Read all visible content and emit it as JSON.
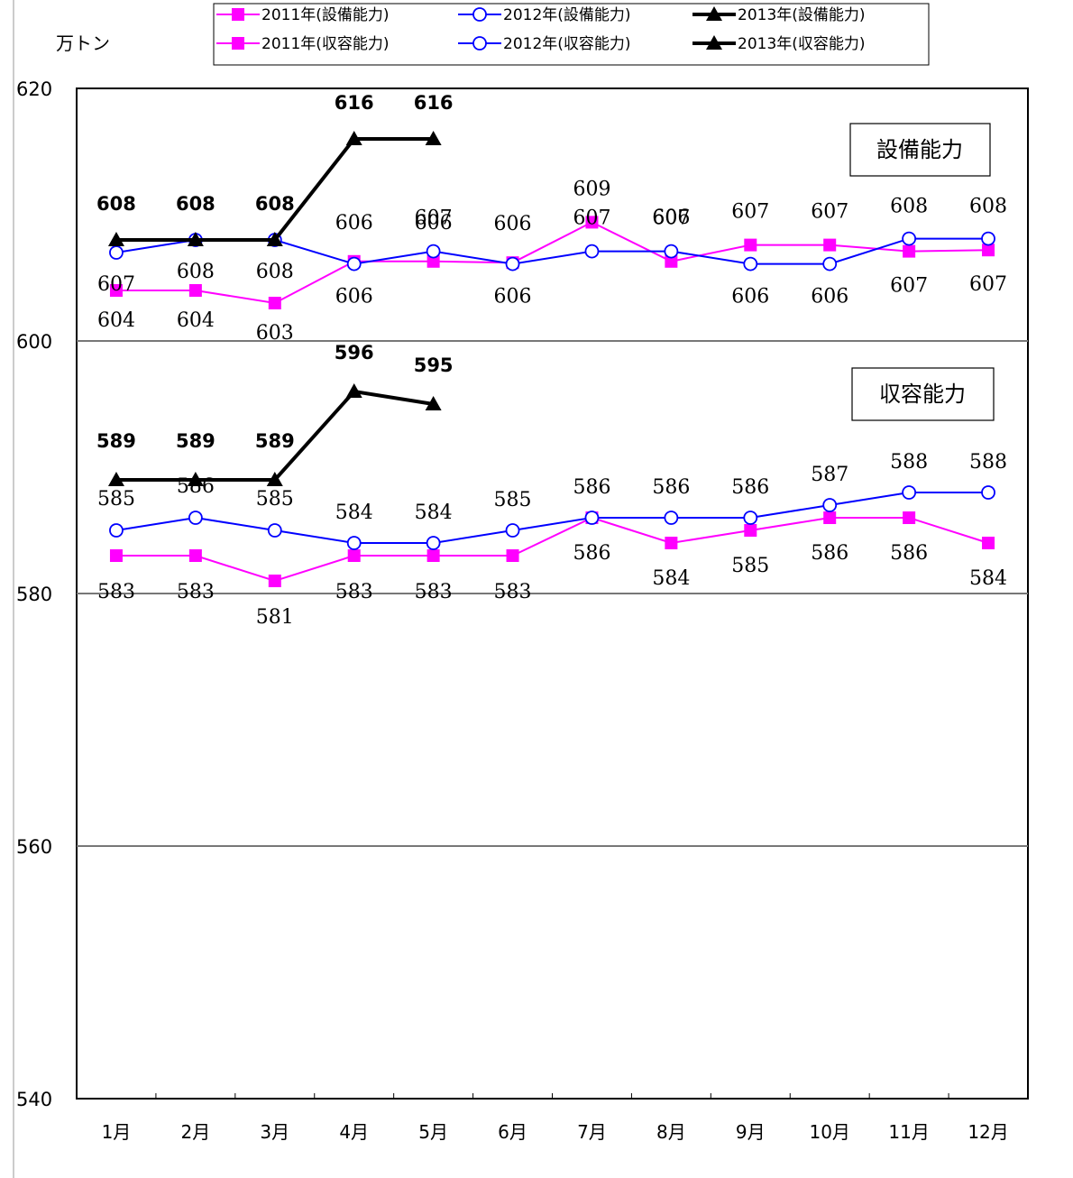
{
  "chart_data": {
    "type": "line",
    "unit_label": "万トン",
    "ylim": [
      540,
      620
    ],
    "yticks": [
      540,
      560,
      580,
      600,
      620
    ],
    "categories": [
      "1月",
      "2月",
      "3月",
      "4月",
      "5月",
      "6月",
      "7月",
      "8月",
      "9月",
      "10月",
      "11月",
      "12月"
    ],
    "box_labels": [
      "設備能力",
      "収容能力"
    ],
    "series": [
      {
        "name": "2011年(設備能力)",
        "color": "#ff00ff",
        "marker": "square",
        "bold": false,
        "label_pos": "below",
        "values": [
          604,
          604,
          603,
          606,
          606,
          606,
          609,
          606,
          607,
          607,
          607,
          607
        ],
        "plot": [
          604,
          604,
          603,
          606.3,
          606.3,
          606.2,
          609.4,
          606.3,
          607.6,
          607.6,
          607.1,
          607.2
        ]
      },
      {
        "name": "2012年(設備能力)",
        "color": "#0000ff",
        "marker": "circle",
        "bold": false,
        "label_pos": "mixed",
        "values": [
          607,
          608,
          608,
          606,
          607,
          606,
          607,
          607,
          606,
          606,
          608,
          608
        ],
        "plot": [
          607,
          608,
          608,
          606.1,
          607.1,
          606.1,
          607.1,
          607.1,
          606.1,
          606.1,
          608.1,
          608.1
        ]
      },
      {
        "name": "2013年(設備能力)",
        "color": "#000000",
        "marker": "triangle",
        "bold": true,
        "label_pos": "above",
        "values": [
          608,
          608,
          608,
          616,
          616,
          null,
          null,
          null,
          null,
          null,
          null,
          null
        ],
        "plot": [
          608,
          608,
          608,
          616,
          616,
          null,
          null,
          null,
          null,
          null,
          null,
          null
        ]
      },
      {
        "name": "2011年(収容能力)",
        "color": "#ff00ff",
        "marker": "square",
        "bold": false,
        "label_pos": "mixed",
        "values": [
          583,
          583,
          581,
          583,
          583,
          583,
          586,
          584,
          585,
          586,
          586,
          584
        ],
        "plot": [
          583,
          583,
          581,
          583,
          583,
          583,
          586,
          584,
          585,
          586,
          586,
          584
        ]
      },
      {
        "name": "2012年(収容能力)",
        "color": "#0000ff",
        "marker": "circle",
        "bold": false,
        "label_pos": "above",
        "values": [
          585,
          586,
          585,
          584,
          584,
          585,
          586,
          586,
          586,
          587,
          588,
          588
        ],
        "plot": [
          585,
          586,
          585,
          584,
          584,
          585,
          586,
          586,
          586,
          587,
          588,
          588
        ]
      },
      {
        "name": "2013年(収容能力)",
        "color": "#000000",
        "marker": "triangle",
        "bold": true,
        "label_pos": "above",
        "values": [
          589,
          589,
          589,
          596,
          595,
          null,
          null,
          null,
          null,
          null,
          null,
          null
        ],
        "plot": [
          589,
          589,
          589,
          596,
          595,
          null,
          null,
          null,
          null,
          null,
          null,
          null
        ]
      }
    ]
  }
}
